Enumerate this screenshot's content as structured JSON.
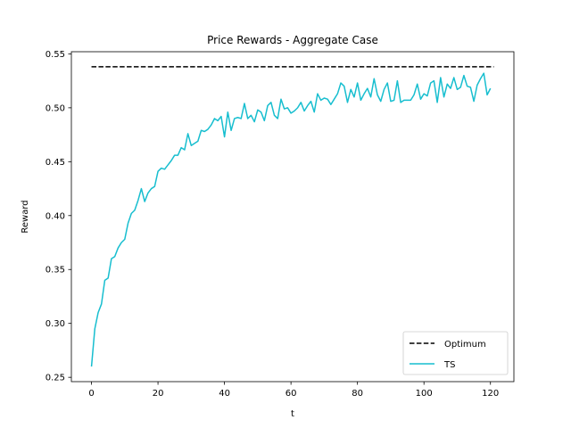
{
  "chart_data": {
    "type": "line",
    "title": "Price Rewards - Aggregate Case",
    "xlabel": "t",
    "ylabel": "Reward",
    "xlim": [
      -6.05,
      127.05
    ],
    "ylim": [
      0.246,
      0.552
    ],
    "x_ticks": [
      0,
      20,
      40,
      60,
      80,
      100,
      120
    ],
    "y_ticks": [
      0.25,
      0.3,
      0.35,
      0.4,
      0.45,
      0.5,
      0.55
    ],
    "y_tick_labels": [
      "0.25",
      "0.30",
      "0.35",
      "0.40",
      "0.45",
      "0.50",
      "0.55"
    ],
    "grid": false,
    "legend_position": "lower-right",
    "series": [
      {
        "name": "Optimum",
        "color": "#000000",
        "style": "dashed",
        "x": [
          0,
          121
        ],
        "y": [
          0.538,
          0.538
        ]
      },
      {
        "name": "TS",
        "color": "#17becf",
        "style": "solid",
        "x_start": 0,
        "x_step": 1,
        "y": [
          0.26,
          0.295,
          0.31,
          0.318,
          0.34,
          0.342,
          0.36,
          0.362,
          0.37,
          0.375,
          0.378,
          0.393,
          0.402,
          0.405,
          0.414,
          0.425,
          0.413,
          0.421,
          0.425,
          0.427,
          0.441,
          0.444,
          0.443,
          0.447,
          0.451,
          0.456,
          0.456,
          0.463,
          0.461,
          0.476,
          0.465,
          0.467,
          0.469,
          0.479,
          0.478,
          0.48,
          0.484,
          0.49,
          0.488,
          0.492,
          0.473,
          0.496,
          0.479,
          0.49,
          0.491,
          0.49,
          0.504,
          0.49,
          0.493,
          0.487,
          0.498,
          0.496,
          0.488,
          0.502,
          0.505,
          0.493,
          0.49,
          0.508,
          0.499,
          0.5,
          0.495,
          0.497,
          0.5,
          0.505,
          0.497,
          0.502,
          0.506,
          0.496,
          0.513,
          0.507,
          0.509,
          0.508,
          0.503,
          0.508,
          0.513,
          0.523,
          0.52,
          0.505,
          0.517,
          0.51,
          0.523,
          0.507,
          0.513,
          0.518,
          0.51,
          0.527,
          0.512,
          0.506,
          0.517,
          0.523,
          0.506,
          0.507,
          0.525,
          0.505,
          0.507,
          0.507,
          0.507,
          0.512,
          0.522,
          0.508,
          0.513,
          0.511,
          0.523,
          0.525,
          0.505,
          0.528,
          0.51,
          0.522,
          0.518,
          0.528,
          0.517,
          0.519,
          0.53,
          0.52,
          0.519,
          0.506,
          0.521,
          0.527,
          0.532,
          0.512,
          0.518
        ]
      }
    ]
  }
}
